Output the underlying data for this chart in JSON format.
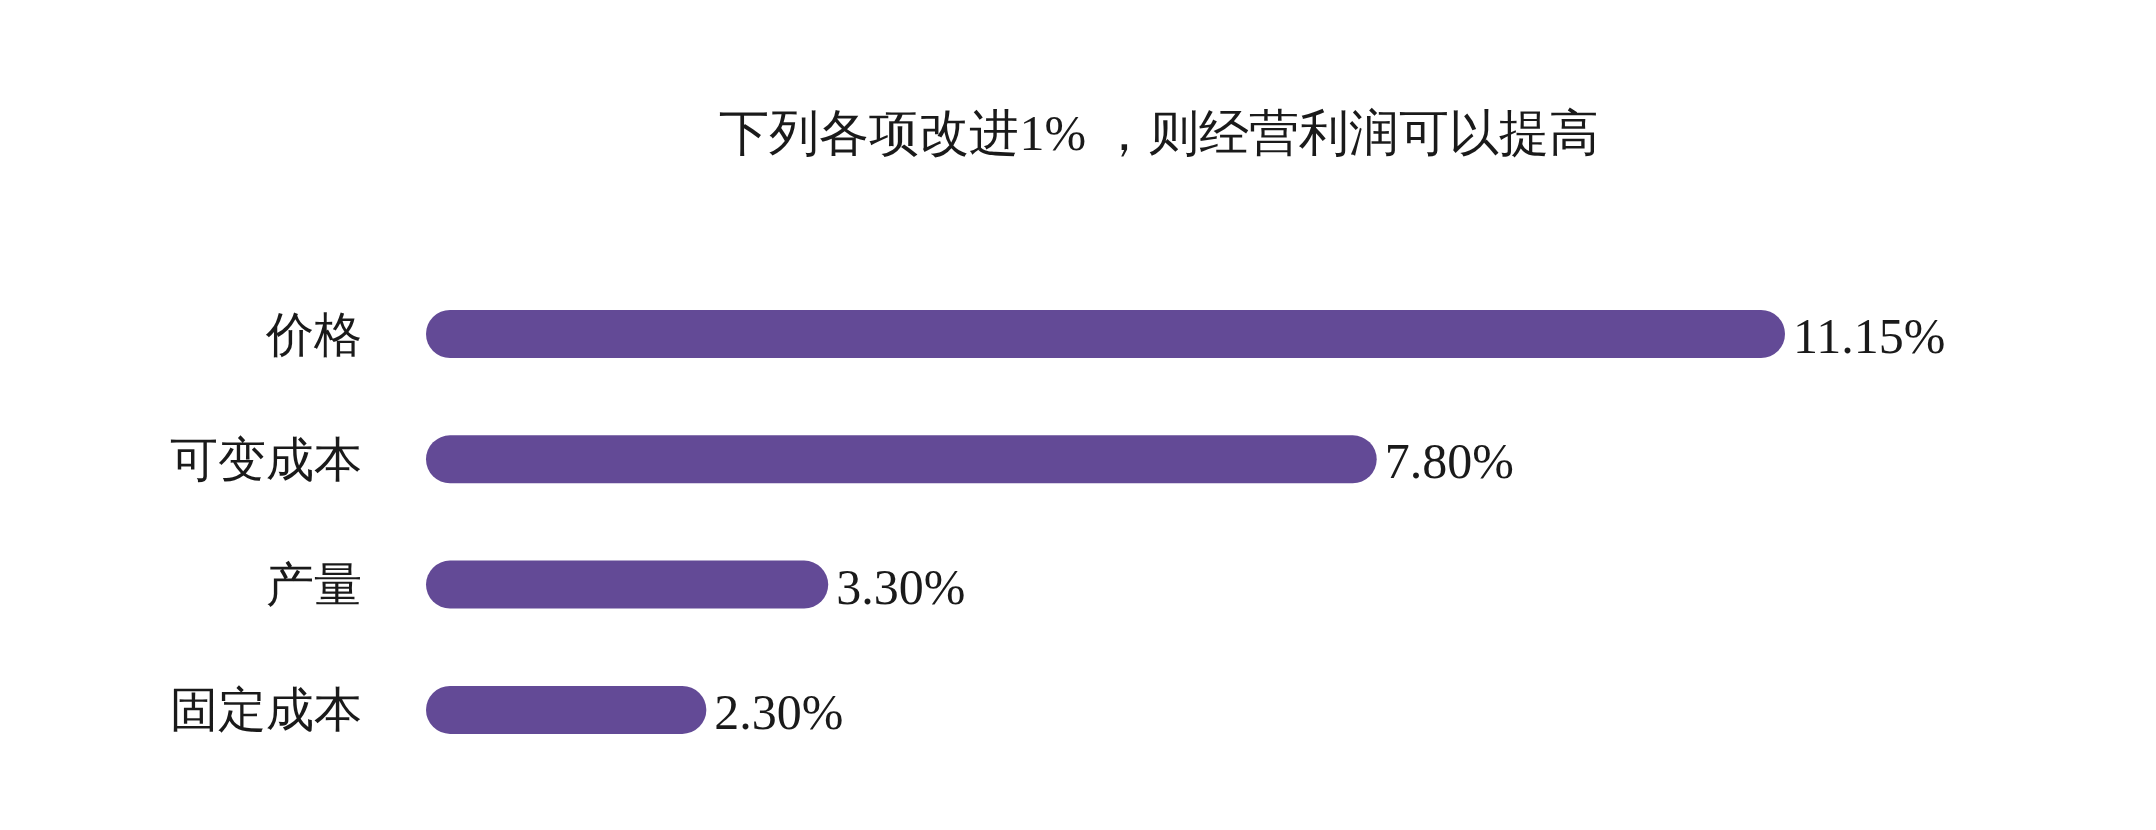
{
  "chart_data": {
    "type": "bar",
    "orientation": "horizontal",
    "title": "下列各项改进1% ，则经营利润可以提高",
    "categories": [
      "价格",
      "可变成本",
      "产量",
      "固定成本"
    ],
    "values": [
      11.15,
      7.8,
      3.3,
      2.3
    ],
    "value_labels": [
      "11.15%",
      "7.80%",
      "3.30%",
      "2.30%"
    ],
    "color": "#634a96"
  }
}
